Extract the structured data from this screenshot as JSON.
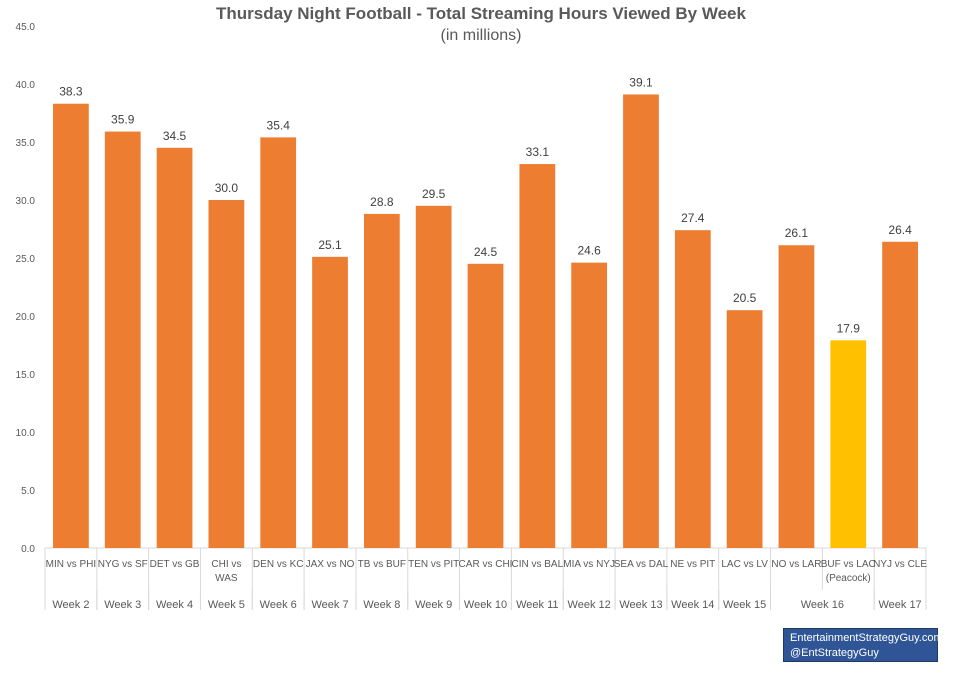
{
  "chart_data": {
    "type": "bar",
    "title": "Thursday Night Football - Total Streaming Hours Viewed By Week",
    "subtitle": "(in millions)",
    "ylim": [
      0,
      45
    ],
    "yticks": [
      "0.0",
      "5.0",
      "10.0",
      "15.0",
      "20.0",
      "25.0",
      "30.0",
      "35.0",
      "40.0",
      "45.0"
    ],
    "grid": false,
    "bars": [
      {
        "matchup": [
          "MIN vs PHI"
        ],
        "week": "Week 2",
        "value": 38.3,
        "label": "38.3"
      },
      {
        "matchup": [
          "NYG vs SF"
        ],
        "week": "Week 3",
        "value": 35.9,
        "label": "35.9"
      },
      {
        "matchup": [
          "DET vs GB"
        ],
        "week": "Week 4",
        "value": 34.5,
        "label": "34.5"
      },
      {
        "matchup": [
          "CHI vs",
          "WAS"
        ],
        "week": "Week 5",
        "value": 30.0,
        "label": "30.0"
      },
      {
        "matchup": [
          "DEN vs KC"
        ],
        "week": "Week 6",
        "value": 35.4,
        "label": "35.4"
      },
      {
        "matchup": [
          "JAX vs NO"
        ],
        "week": "Week 7",
        "value": 25.1,
        "label": "25.1"
      },
      {
        "matchup": [
          "TB vs BUF"
        ],
        "week": "Week 8",
        "value": 28.8,
        "label": "28.8"
      },
      {
        "matchup": [
          "TEN vs PIT"
        ],
        "week": "Week 9",
        "value": 29.5,
        "label": "29.5"
      },
      {
        "matchup": [
          "CAR vs CHI"
        ],
        "week": "Week 10",
        "value": 24.5,
        "label": "24.5"
      },
      {
        "matchup": [
          "CIN vs BAL"
        ],
        "week": "Week 11",
        "value": 33.1,
        "label": "33.1"
      },
      {
        "matchup": [
          "MIA vs NYJ"
        ],
        "week": "Week 12",
        "value": 24.6,
        "label": "24.6"
      },
      {
        "matchup": [
          "SEA vs DAL"
        ],
        "week": "Week 13",
        "value": 39.1,
        "label": "39.1"
      },
      {
        "matchup": [
          "NE vs PIT"
        ],
        "week": "Week 14",
        "value": 27.4,
        "label": "27.4"
      },
      {
        "matchup": [
          "LAC vs LV"
        ],
        "week": "Week 15",
        "value": 20.5,
        "label": "20.5"
      },
      {
        "matchup": [
          "NO vs LAR"
        ],
        "week": "Week 16",
        "value": 26.1,
        "label": "26.1"
      },
      {
        "matchup": [
          "BUF vs LAC",
          "(Peacock)"
        ],
        "week": "Week 16",
        "value": 17.9,
        "label": "17.9",
        "highlight": true
      },
      {
        "matchup": [
          "NYJ vs CLE"
        ],
        "week": "Week 17",
        "value": 26.4,
        "label": "26.4"
      }
    ],
    "colors": {
      "bar": "#ed7d31",
      "highlight": "#ffc000",
      "axis": "#d9d9d9"
    }
  },
  "credit": {
    "line1": "EntertainmentStrategyGuy.com",
    "line2": "@EntStrategyGuy"
  }
}
